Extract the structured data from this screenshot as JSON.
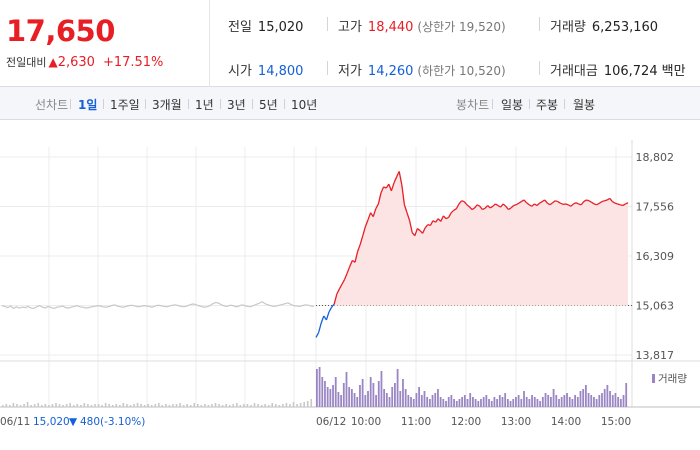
{
  "summary": {
    "current_price": "17,650",
    "change_label": "전일대비",
    "change_arrow": "▲",
    "change_value": "2,630",
    "change_pct": "+17.51%",
    "prev_close": {
      "label": "전일",
      "value": "15,020"
    },
    "open": {
      "label": "시가",
      "value": "14,800"
    },
    "high": {
      "label": "고가",
      "value": "18,440",
      "sub": "(상한가 19,520)"
    },
    "low": {
      "label": "저가",
      "value": "14,260",
      "sub": "(하한가 10,520)"
    },
    "volume": {
      "label": "거래량",
      "value": "6,253,160"
    },
    "amount": {
      "label": "거래대금",
      "value": "106,724",
      "unit": "백만"
    }
  },
  "toolbar": {
    "line_label": "선차트",
    "line_tabs": [
      "1일",
      "1주일",
      "3개월",
      "1년",
      "3년",
      "5년",
      "10년"
    ],
    "active_tab": "1일",
    "candle_label": "봉차트",
    "candle_tabs": [
      "일봉",
      "주봉",
      "월봉"
    ]
  },
  "colors": {
    "up": "#e81e25",
    "down": "#1560d9",
    "prev_day_line": "#c8c8c8",
    "fill": "#fde4e4",
    "volume_bar": "#9b86c4",
    "volume_bar_prev": "#c8c8c8"
  },
  "chart_data": {
    "type": "line",
    "y_ticks": [
      "18,802",
      "17,556",
      "16,309",
      "15,063",
      "13,817"
    ],
    "ylim": [
      13817,
      18802
    ],
    "baseline_price": 15063,
    "x_labels": [
      "06/11",
      "06/12",
      "10:00",
      "11:00",
      "12:00",
      "13:00",
      "14:00",
      "15:00"
    ],
    "prev_day_note": {
      "price": "15,020",
      "arrow": "▼",
      "change": "480",
      "pct": "(-3.10%)"
    },
    "volume_legend": "거래량",
    "prev_day_series": [
      15060,
      15040,
      15010,
      15050,
      14990,
      15030,
      15000,
      15020,
      15010,
      15040,
      15000,
      14990,
      15030,
      15060,
      15020,
      15000,
      15040,
      15010,
      14990,
      15020,
      15030,
      15050,
      15010,
      15000,
      15020,
      15040,
      15060,
      15030,
      15020,
      15000,
      15010,
      15030,
      15040,
      15060,
      15050,
      15030,
      15020,
      15040,
      15060,
      15080,
      15050,
      15030,
      15020,
      15040,
      15060,
      15070,
      15050,
      15030,
      15040,
      15060,
      15050,
      15040,
      15020,
      15050,
      15070,
      15060,
      15040,
      15030,
      15050,
      15070,
      15080,
      15060,
      15040,
      15030,
      15050,
      15080,
      15100,
      15090,
      15060,
      15040,
      15020,
      15030,
      15060,
      15110,
      15140,
      15120,
      15080,
      15050,
      15040,
      15070,
      15060,
      15030,
      15050,
      15080,
      15060,
      15040,
      15030,
      15060,
      15090,
      15120,
      15160,
      15110,
      15080,
      15060,
      15040,
      15050,
      15070,
      15090,
      15110,
      15130,
      15090,
      15060,
      15050,
      15040,
      15060,
      15080,
      15070,
      15050,
      15040
    ],
    "today_series": [
      14260,
      14380,
      14620,
      14800,
      14700,
      14900,
      15020,
      15100,
      15350,
      15480,
      15600,
      15720,
      15880,
      16050,
      16200,
      16150,
      16420,
      16600,
      16820,
      17050,
      17220,
      17400,
      17300,
      17500,
      17620,
      17900,
      18050,
      18020,
      18120,
      17950,
      18150,
      18300,
      18440,
      18100,
      17600,
      17400,
      17200,
      16900,
      16820,
      17000,
      16950,
      16880,
      17020,
      17100,
      17080,
      17200,
      17160,
      17250,
      17180,
      17320,
      17250,
      17280,
      17400,
      17460,
      17500,
      17620,
      17700,
      17680,
      17600,
      17550,
      17480,
      17520,
      17600,
      17560,
      17480,
      17510,
      17580,
      17520,
      17560,
      17620,
      17580,
      17540,
      17620,
      17560,
      17480,
      17520,
      17580,
      17600,
      17640,
      17680,
      17720,
      17650,
      17600,
      17560,
      17620,
      17580,
      17640,
      17680,
      17720,
      17640,
      17600,
      17650,
      17700,
      17680,
      17640,
      17610,
      17620,
      17600,
      17560,
      17620,
      17650,
      17620,
      17600,
      17680,
      17720,
      17700,
      17660,
      17620,
      17600,
      17640,
      17680,
      17700,
      17720,
      17760,
      17680,
      17640,
      17620,
      17600,
      17580,
      17620,
      17650
    ],
    "prev_day_volume": [
      2,
      3,
      2,
      4,
      3,
      2,
      3,
      5,
      2,
      3,
      4,
      2,
      3,
      2,
      3,
      4,
      3,
      2,
      3,
      4,
      2,
      3,
      2,
      4,
      3,
      2,
      3,
      3,
      2,
      4,
      3,
      2,
      3,
      2,
      4,
      3,
      2,
      3,
      4,
      3,
      2,
      3,
      2,
      3,
      4,
      2,
      3,
      2,
      3,
      3,
      4,
      2,
      3,
      2,
      4,
      3,
      2,
      3,
      2,
      3,
      4,
      3,
      2,
      3,
      2,
      3,
      4,
      2,
      3,
      3,
      2,
      4,
      3,
      2,
      3,
      2,
      4,
      3,
      2,
      3,
      4,
      3,
      5,
      3,
      4,
      5,
      6,
      8
    ],
    "today_volume": [
      38,
      40,
      30,
      26,
      20,
      18,
      22,
      30,
      15,
      12,
      24,
      35,
      20,
      18,
      14,
      10,
      22,
      28,
      12,
      16,
      30,
      24,
      12,
      26,
      36,
      18,
      14,
      10,
      20,
      24,
      38,
      16,
      28,
      18,
      12,
      10,
      8,
      14,
      20,
      12,
      16,
      10,
      8,
      12,
      14,
      18,
      10,
      8,
      6,
      10,
      12,
      8,
      6,
      8,
      10,
      12,
      8,
      14,
      10,
      8,
      6,
      8,
      10,
      12,
      8,
      6,
      10,
      8,
      12,
      10,
      14,
      8,
      6,
      8,
      10,
      12,
      8,
      16,
      10,
      8,
      12,
      10,
      8,
      6,
      10,
      14,
      12,
      10,
      18,
      12,
      8,
      10,
      12,
      14,
      10,
      8,
      12,
      10,
      16,
      18,
      22,
      14,
      12,
      10,
      8,
      12,
      14,
      18,
      22,
      16,
      12,
      14,
      10,
      8,
      12,
      24
    ]
  }
}
